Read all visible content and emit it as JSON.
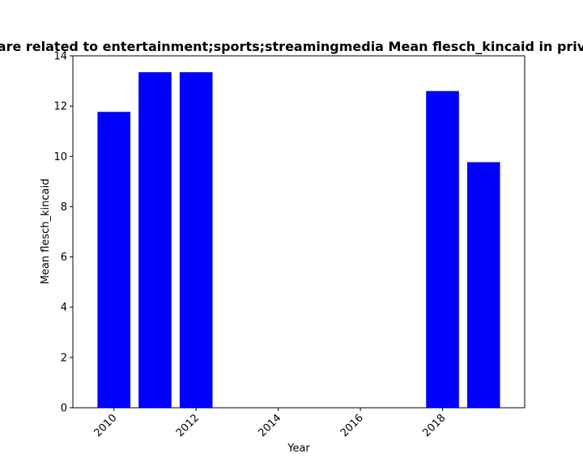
{
  "chart_data": {
    "type": "bar",
    "title": "are related to entertainment;sports;streamingmedia Mean flesch_kincaid in priv",
    "xlabel": "Year",
    "ylabel": "Mean flesch_kincaid",
    "x": [
      2010,
      2011,
      2012,
      2018,
      2019
    ],
    "values": [
      11.77,
      13.35,
      13.35,
      12.6,
      9.77
    ],
    "xlim": [
      2009,
      2020
    ],
    "ylim": [
      0,
      14
    ],
    "xticks": [
      "2010",
      "2012",
      "2014",
      "2016",
      "2018"
    ],
    "yticks": [
      "0",
      "2",
      "4",
      "6",
      "8",
      "10",
      "12",
      "14"
    ],
    "bar_color": "#0000ff",
    "grid": false
  }
}
